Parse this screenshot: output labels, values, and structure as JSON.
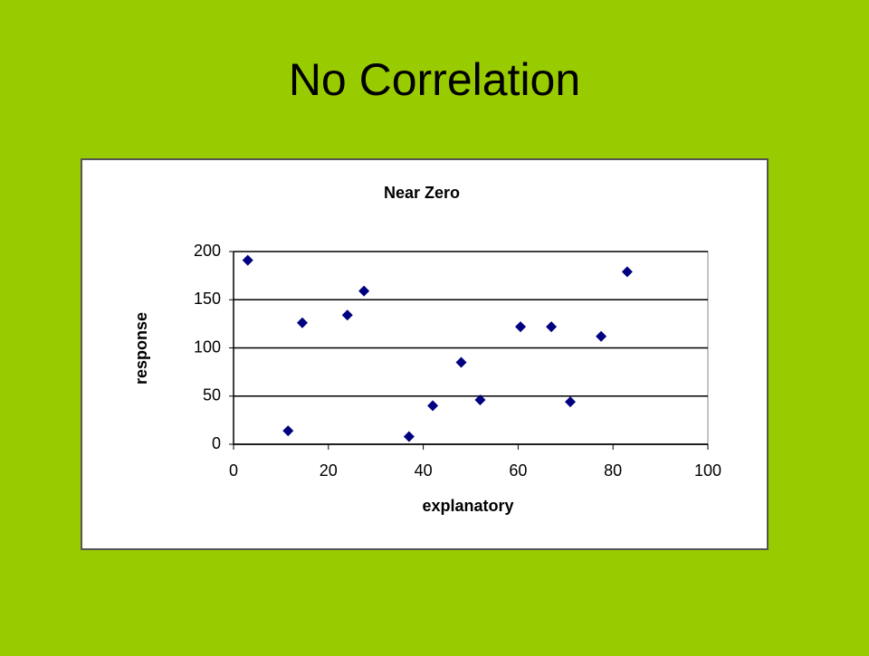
{
  "slide_title": "No Correlation",
  "chart_data": {
    "type": "scatter",
    "title": "Near Zero",
    "x_label": "explanatory",
    "y_label": "response",
    "x": [
      3,
      11.5,
      14.5,
      24,
      27.5,
      37,
      42,
      48,
      52,
      60.5,
      67,
      71,
      77.5,
      83
    ],
    "values": [
      191,
      14,
      126,
      134,
      159,
      8,
      40,
      85,
      46,
      122,
      122,
      44,
      112,
      179
    ],
    "color": "#000080",
    "xlim": [
      0,
      100
    ],
    "xticks": [
      0,
      20,
      40,
      60,
      80,
      100
    ],
    "ylim": [
      0,
      200
    ],
    "yticks": [
      0,
      50,
      100,
      150,
      200
    ],
    "grid": true
  }
}
